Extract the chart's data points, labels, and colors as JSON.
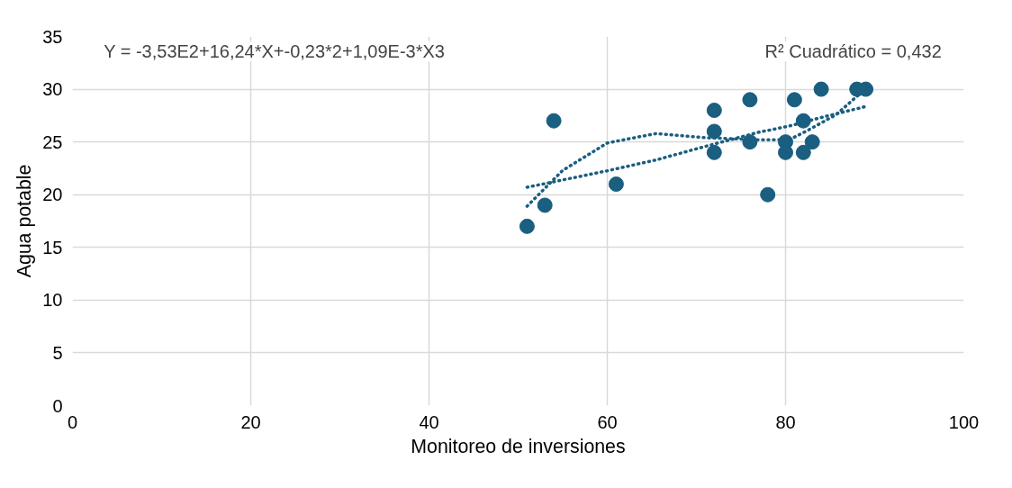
{
  "chart_data": {
    "type": "scatter",
    "xlabel": "Monitoreo de inversiones",
    "ylabel": "Agua potable",
    "xlim": [
      0,
      100
    ],
    "xticks": [
      0,
      20,
      40,
      60,
      80,
      100
    ],
    "ylim": [
      0,
      35
    ],
    "yticks": [
      0,
      5,
      10,
      15,
      20,
      25,
      30,
      35
    ],
    "grid": true,
    "marker": "circle",
    "annotations": [
      "Y = -3,53E2+16,24*X+-0,23*2+1,09E-3*X3",
      "R² Cuadrático = 0,432"
    ],
    "series": [
      {
        "color": "#1a5e80",
        "x": [
          51,
          53,
          54,
          61,
          72,
          72,
          72,
          76,
          76,
          78,
          80,
          80,
          81,
          82,
          82,
          83,
          84,
          88,
          89
        ],
        "values": [
          17,
          19,
          27,
          21,
          28,
          26,
          24,
          29,
          25,
          20,
          25,
          24,
          29,
          27,
          24,
          25,
          30,
          30,
          30
        ]
      },
      {
        "type": "line",
        "color": "#1a5e80",
        "line_style": "dotted",
        "marker": "none",
        "x": [
          51,
          55,
          60,
          65.5,
          71,
          77,
          80.4,
          82.5,
          85.7,
          88.1,
          89
        ],
        "values": [
          18.9,
          22.3,
          24.9,
          25.8,
          25.4,
          25.2,
          25.2,
          26.1,
          27.6,
          29.4,
          30.2
        ]
      },
      {
        "type": "line",
        "color": "#1a5e80",
        "line_style": "dotted",
        "marker": "none",
        "x": [
          51,
          60.2,
          65.5,
          71.1,
          76.9,
          80.4,
          83.9,
          89.2
        ],
        "values": [
          20.7,
          22.3,
          23.3,
          24.6,
          25.9,
          26.5,
          27.3,
          28.4
        ]
      }
    ]
  }
}
